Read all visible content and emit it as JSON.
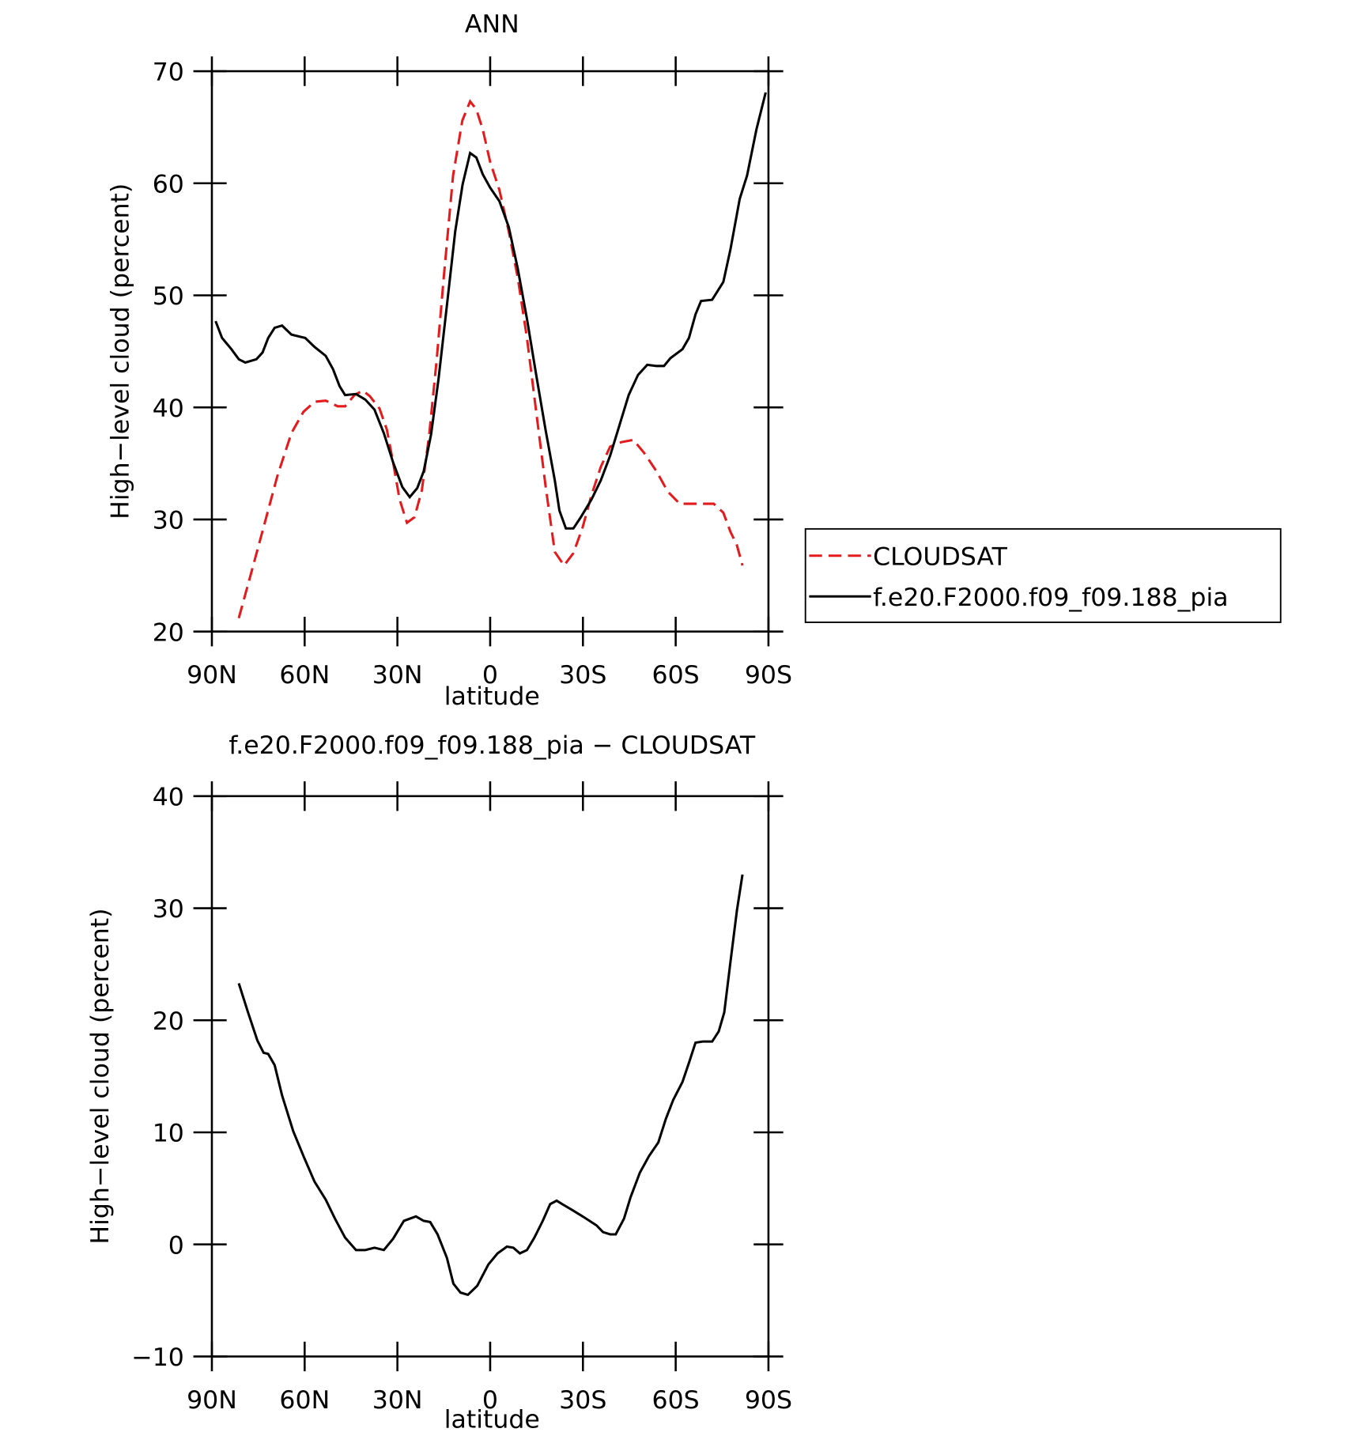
{
  "chart_data": [
    {
      "type": "line",
      "title": "ANN",
      "xlabel": "latitude",
      "ylabel": "High−level cloud (percent)",
      "xlim": [
        90,
        -90
      ],
      "xticks": [
        {
          "value": 90,
          "label": "90N"
        },
        {
          "value": 60,
          "label": "60N"
        },
        {
          "value": 30,
          "label": "30N"
        },
        0,
        {
          "value": -30,
          "label": "30S"
        },
        {
          "value": -60,
          "label": "60S"
        },
        {
          "value": -90,
          "label": "90S"
        }
      ],
      "ylim": [
        20,
        70
      ],
      "yticks": [
        20,
        30,
        40,
        50,
        60,
        70
      ],
      "legend": "right",
      "series": [
        {
          "name": "CLOUDSAT",
          "color": "#e41a1c",
          "dash": true,
          "x": [
            81.3,
            77.7,
            73.3,
            68.8,
            64.3,
            60.4,
            56.8,
            53.2,
            49.3,
            46.9,
            43.9,
            41.2,
            38.9,
            35.8,
            33.4,
            31.4,
            29.3,
            26.9,
            24.5,
            22.1,
            19.7,
            17.3,
            15.0,
            12.0,
            9.0,
            6.5,
            4.5,
            2.4,
            0,
            -3.0,
            -6.0,
            -8.9,
            -11.9,
            -14.9,
            -17.9,
            -20.9,
            -23.9,
            -26.9,
            -29.9,
            -32.8,
            -35.8,
            -38.8,
            -42.4,
            -46.3,
            -49.9,
            -53.8,
            -57.4,
            -61.3,
            -65.7,
            -72.3,
            -75.4,
            -77.7,
            -79.8,
            -81.6
          ],
          "values": [
            21.2,
            24.8,
            29.3,
            33.9,
            37.7,
            39.6,
            40.5,
            40.6,
            40.1,
            40.1,
            41.1,
            41.5,
            41.0,
            39.9,
            38.0,
            35.1,
            31.8,
            29.7,
            30.2,
            32.6,
            37.6,
            44.2,
            51.6,
            60.7,
            65.6,
            67.3,
            66.6,
            64.8,
            61.9,
            59.4,
            55.7,
            51.6,
            46.2,
            39.6,
            33.0,
            27.1,
            25.9,
            27.0,
            29.3,
            32.2,
            34.7,
            36.5,
            36.9,
            37.1,
            35.9,
            34.3,
            32.5,
            31.4,
            31.4,
            31.4,
            30.6,
            28.9,
            27.7,
            25.9
          ]
        },
        {
          "name": "f.e20.F2000.f09_f09.188_pia",
          "color": "#000000",
          "dash": false,
          "x": [
            88.8,
            86.7,
            83.7,
            81.3,
            79.2,
            75.6,
            73.6,
            71.8,
            69.7,
            67.3,
            64.3,
            59.8,
            56.8,
            53.2,
            50.8,
            48.7,
            46.9,
            43.4,
            40.4,
            37.4,
            34.4,
            31.4,
            28.4,
            26.0,
            23.6,
            21.5,
            19.1,
            16.7,
            14.0,
            11.3,
            8.9,
            6.5,
            4.5,
            2.4,
            0,
            -3.0,
            -6.0,
            -8.9,
            -11.9,
            -14.9,
            -17.9,
            -20.9,
            -22.4,
            -24.5,
            -26.9,
            -29.3,
            -32.8,
            -35.8,
            -38.8,
            -41.8,
            -44.8,
            -47.8,
            -50.8,
            -53.8,
            -56.2,
            -58.3,
            -62.2,
            -64.3,
            -66.4,
            -68.2,
            -71.8,
            -75.4,
            -77.7,
            -80.7,
            -83.1,
            -86.1,
            -89.1
          ],
          "values": [
            47.7,
            46.2,
            45.2,
            44.3,
            44.0,
            44.3,
            44.9,
            46.2,
            47.1,
            47.3,
            46.5,
            46.2,
            45.4,
            44.6,
            43.4,
            41.9,
            41.1,
            41.2,
            40.7,
            39.8,
            37.7,
            35.1,
            32.9,
            32.0,
            32.8,
            34.3,
            37.6,
            42.5,
            49.1,
            55.7,
            59.9,
            62.7,
            62.3,
            60.8,
            59.6,
            58.4,
            56.1,
            52.4,
            47.9,
            42.9,
            38.0,
            33.5,
            30.8,
            29.2,
            29.2,
            30.2,
            31.8,
            33.5,
            35.7,
            38.4,
            41.1,
            42.9,
            43.8,
            43.7,
            43.7,
            44.4,
            45.2,
            46.2,
            48.3,
            49.5,
            49.6,
            51.2,
            54.1,
            58.6,
            60.7,
            64.8,
            68.1
          ]
        }
      ]
    },
    {
      "type": "line",
      "title": "f.e20.F2000.f09_f09.188_pia − CLOUDSAT",
      "xlabel": "latitude",
      "ylabel": "High−level cloud (percent)",
      "xlim": [
        90,
        -90
      ],
      "xticks": [
        {
          "value": 90,
          "label": "90N"
        },
        {
          "value": 60,
          "label": "60N"
        },
        {
          "value": 30,
          "label": "30N"
        },
        0,
        {
          "value": -30,
          "label": "30S"
        },
        {
          "value": -60,
          "label": "60S"
        },
        {
          "value": -90,
          "label": "90S"
        }
      ],
      "ylim": [
        -10,
        40
      ],
      "yticks": [
        {
          "value": -10,
          "label": "−10"
        },
        0,
        10,
        20,
        30,
        40
      ],
      "series": [
        {
          "color": "#000000",
          "dash": false,
          "x": [
            81.3,
            78.3,
            75.3,
            73.3,
            71.8,
            69.7,
            67.3,
            63.7,
            60.4,
            56.8,
            53.2,
            50.2,
            46.9,
            43.4,
            40.4,
            37.4,
            34.4,
            31.4,
            27.9,
            24.0,
            21.5,
            19.4,
            17.0,
            14.0,
            11.9,
            9.6,
            7.2,
            4.2,
            0.6,
            -2.4,
            -5.4,
            -7.5,
            -9.6,
            -11.9,
            -14.3,
            -17.0,
            -19.4,
            -21.5,
            -23.9,
            -26.3,
            -29.9,
            -34.4,
            -36.5,
            -38.8,
            -40.6,
            -43.3,
            -45.4,
            -48.4,
            -51.4,
            -54.4,
            -56.8,
            -59.2,
            -62.2,
            -64.3,
            -66.4,
            -68.8,
            -71.8,
            -73.9,
            -75.7,
            -77.7,
            -79.8,
            -81.6
          ],
          "values": [
            23.3,
            20.7,
            18.2,
            17.1,
            17.0,
            16.0,
            13.3,
            10.1,
            7.9,
            5.6,
            4.0,
            2.3,
            0.6,
            -0.5,
            -0.5,
            -0.3,
            -0.5,
            0.5,
            2.1,
            2.5,
            2.1,
            2.0,
            0.9,
            -1.2,
            -3.5,
            -4.3,
            -4.5,
            -3.7,
            -1.8,
            -0.8,
            -0.2,
            -0.3,
            -0.8,
            -0.5,
            0.6,
            2.1,
            3.6,
            3.9,
            3.5,
            3.1,
            2.5,
            1.7,
            1.1,
            0.9,
            0.9,
            2.3,
            4.2,
            6.4,
            7.9,
            9.1,
            11.2,
            12.9,
            14.5,
            16.2,
            18.0,
            18.1,
            18.1,
            19.0,
            20.7,
            25.2,
            29.8,
            33.0
          ]
        }
      ]
    }
  ]
}
